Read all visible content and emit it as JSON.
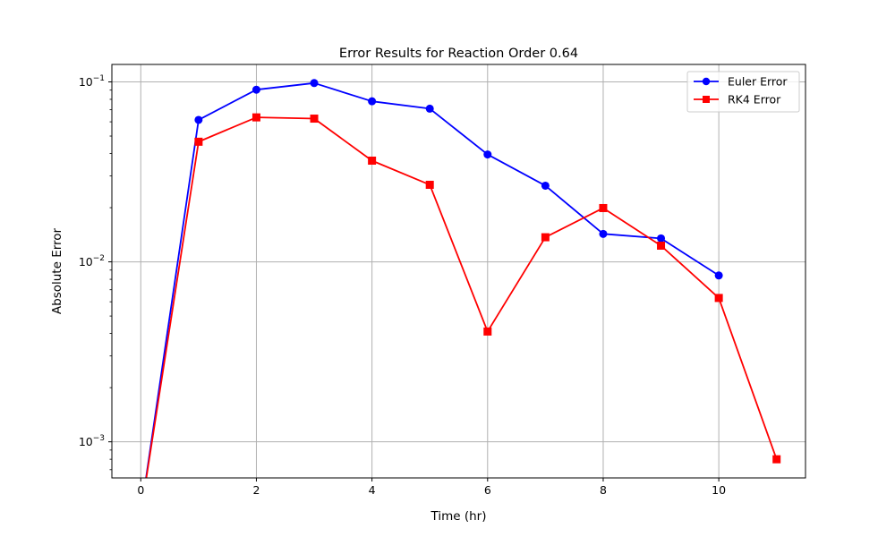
{
  "chart_data": {
    "type": "line",
    "title": "Error Results for Reaction Order 0.64",
    "xlabel": "Time (hr)",
    "ylabel": "Absolute Error",
    "xlim": [
      -0.5,
      11.5
    ],
    "ylim": [
      0.00063,
      0.125
    ],
    "yscale": "log",
    "grid": true,
    "legend_position": "top-right",
    "x_ticks": [
      0,
      2,
      4,
      6,
      8,
      10
    ],
    "y_ticks": [
      {
        "value": 0.001,
        "base": "10",
        "exp": "−3"
      },
      {
        "value": 0.01,
        "base": "10",
        "exp": "−2"
      },
      {
        "value": 0.1,
        "base": "10",
        "exp": "−1"
      }
    ],
    "series": [
      {
        "name": "Euler Error",
        "color": "#0000ff",
        "marker": "circle",
        "x": [
          0,
          1,
          2,
          3,
          4,
          5,
          6,
          7,
          8,
          9,
          10
        ],
        "y": [
          0,
          0.0615,
          0.0905,
          0.0985,
          0.078,
          0.071,
          0.0395,
          0.0265,
          0.0143,
          0.0135,
          0.0084
        ]
      },
      {
        "name": "RK4 Error",
        "color": "#ff0000",
        "marker": "square",
        "x": [
          0,
          1,
          2,
          3,
          4,
          5,
          6,
          7,
          8,
          9,
          10,
          11
        ],
        "y": [
          0,
          0.0465,
          0.0635,
          0.0625,
          0.0365,
          0.0268,
          0.0041,
          0.0137,
          0.0199,
          0.0123,
          0.0063,
          0.0008
        ]
      }
    ]
  }
}
